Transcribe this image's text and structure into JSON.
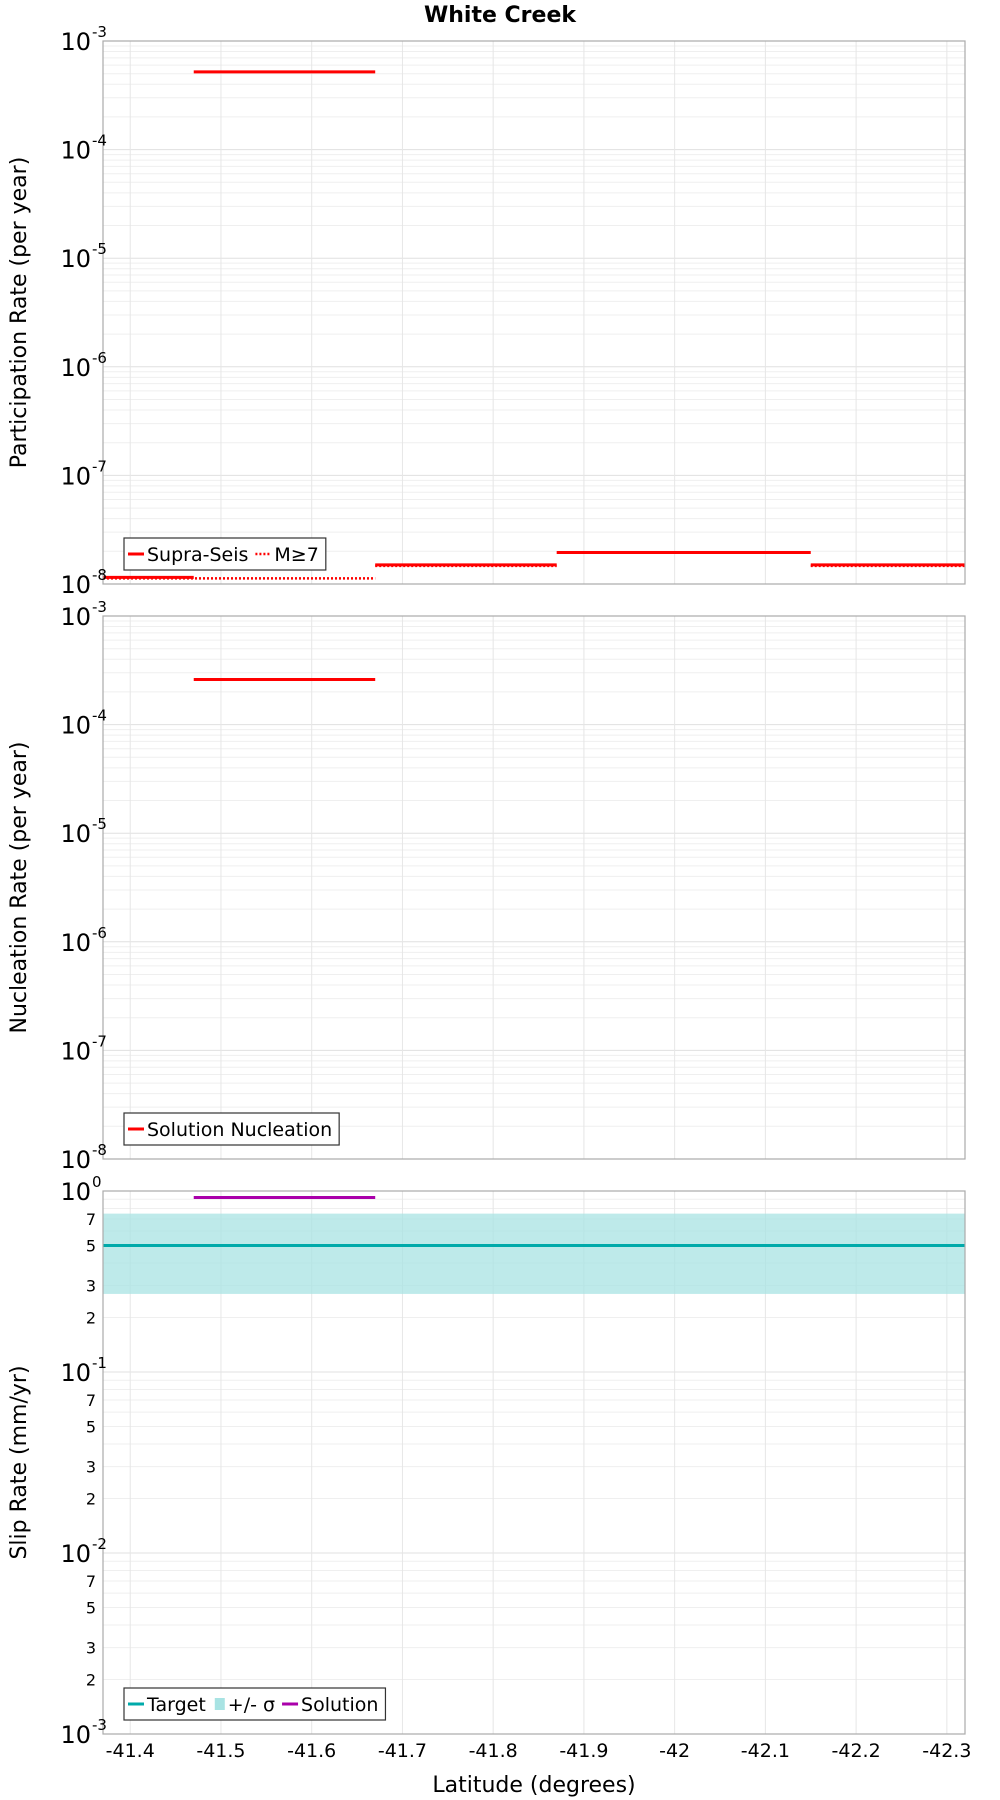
{
  "title": "White Creek",
  "xlabel": "Latitude (degrees)",
  "xlim": [
    -41.37,
    -42.32
  ],
  "x_ticks": [
    -41.4,
    -41.5,
    -41.6,
    -41.7,
    -41.8,
    -41.9,
    -42,
    -42.1,
    -42.2,
    -42.3
  ],
  "x_tick_labels": [
    "-41.4",
    "-41.5",
    "-41.6",
    "-41.7",
    "-41.8",
    "-41.9",
    "-42",
    "-42.1",
    "-42.2",
    "-42.3"
  ],
  "chart_data": [
    {
      "type": "line",
      "panel": "participation",
      "ylabel": "Participation Rate (per year)",
      "yscale": "log",
      "ylim": [
        1e-08,
        0.001
      ],
      "y_major_exponents": [
        -3,
        -4,
        -5,
        -6,
        -7,
        -8
      ],
      "legend": {
        "placement": "bottom-left",
        "entries": [
          {
            "label": "Supra-Seis",
            "style": "solid",
            "color": "#ff0000"
          },
          {
            "label": "M≥7",
            "style": "dotted",
            "color": "#ff0000"
          }
        ]
      },
      "series": [
        {
          "name": "Supra-Seis",
          "style": "solid",
          "color": "#ff0000",
          "segments": [
            {
              "x": [
                -41.37,
                -41.47
              ],
              "y": 1.15e-08
            },
            {
              "x": [
                -41.47,
                -41.67
              ],
              "y": 0.00052
            },
            {
              "x": [
                -41.67,
                -41.87
              ],
              "y": 1.5e-08
            },
            {
              "x": [
                -41.87,
                -42.15
              ],
              "y": 1.95e-08
            },
            {
              "x": [
                -42.15,
                -42.32
              ],
              "y": 1.5e-08
            }
          ]
        },
        {
          "name": "M≥7",
          "style": "dotted",
          "color": "#ff0000",
          "segments": [
            {
              "x": [
                -41.37,
                -41.67
              ],
              "y": 1.15e-08
            },
            {
              "x": [
                -41.67,
                -41.87
              ],
              "y": 1.5e-08
            },
            {
              "x": [
                -42.15,
                -42.32
              ],
              "y": 1.5e-08
            }
          ]
        }
      ]
    },
    {
      "type": "line",
      "panel": "nucleation",
      "ylabel": "Nucleation Rate (per year)",
      "yscale": "log",
      "ylim": [
        1e-08,
        0.001
      ],
      "y_major_exponents": [
        -3,
        -4,
        -5,
        -6,
        -7,
        -8
      ],
      "legend": {
        "placement": "bottom-left",
        "entries": [
          {
            "label": "Solution Nucleation",
            "style": "solid",
            "color": "#ff0000"
          }
        ]
      },
      "series": [
        {
          "name": "Solution Nucleation",
          "style": "solid",
          "color": "#ff0000",
          "segments": [
            {
              "x": [
                -41.47,
                -41.67
              ],
              "y": 0.00026
            }
          ]
        }
      ]
    },
    {
      "type": "line",
      "panel": "slip",
      "ylabel": "Slip Rate (mm/yr)",
      "yscale": "log",
      "ylim": [
        0.001,
        1
      ],
      "y_major_exponents": [
        0,
        -1,
        -2,
        -3
      ],
      "y_minor_labels": [
        "7",
        "5",
        "3",
        "2"
      ],
      "legend": {
        "placement": "bottom-left",
        "entries": [
          {
            "label": "Target",
            "style": "solid",
            "color": "#00aaaa"
          },
          {
            "label": "+/- σ",
            "style": "band",
            "color": "#a8e3e3"
          },
          {
            "label": "Solution",
            "style": "solid",
            "color": "#aa00aa"
          }
        ]
      },
      "band": {
        "name": "+/- σ",
        "y_low": 0.27,
        "y_high": 0.75,
        "x": [
          -41.37,
          -42.32
        ],
        "color": "#a8e3e3"
      },
      "series": [
        {
          "name": "Target",
          "style": "solid",
          "color": "#00aaaa",
          "segments": [
            {
              "x": [
                -41.37,
                -42.32
              ],
              "y": 0.5
            }
          ]
        },
        {
          "name": "Solution",
          "style": "solid",
          "color": "#aa00aa",
          "segments": [
            {
              "x": [
                -41.47,
                -41.67
              ],
              "y": 0.92
            }
          ]
        }
      ]
    }
  ]
}
